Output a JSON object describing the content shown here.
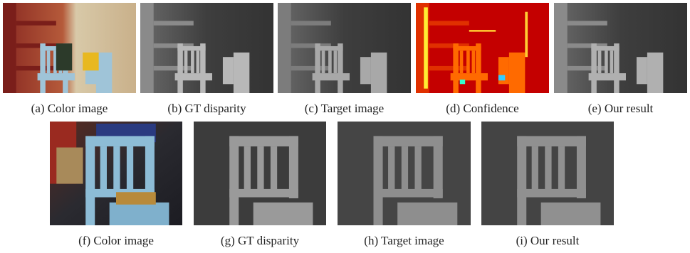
{
  "panels": [
    {
      "caption": "(a) Color image"
    },
    {
      "caption": "(b) GT disparity"
    },
    {
      "caption": "(c) Target image"
    },
    {
      "caption": "(d) Confidence"
    },
    {
      "caption": "(e) Our result"
    },
    {
      "caption": "(f) Color image"
    },
    {
      "caption": "(g) GT disparity"
    },
    {
      "caption": "(h) Target image"
    },
    {
      "caption": "(i) Our result"
    }
  ]
}
